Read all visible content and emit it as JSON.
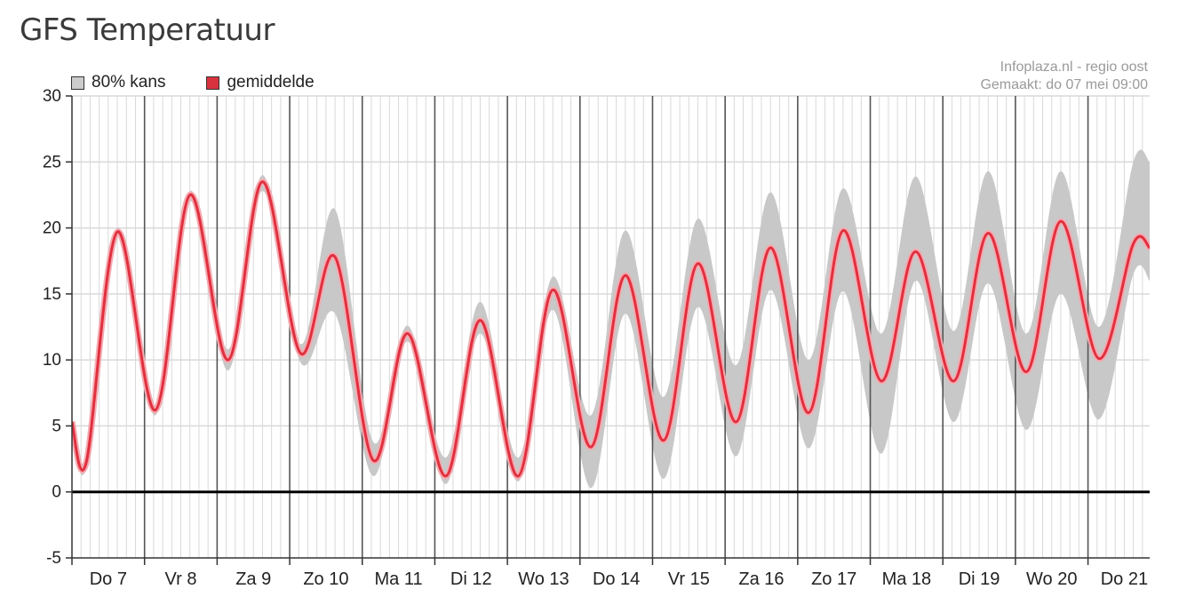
{
  "page": {
    "title": "GFS Temperatuur"
  },
  "legend": {
    "band_label": "80% kans",
    "mean_label": "gemiddelde"
  },
  "source": {
    "line1": "Infoplaza.nl - regio oost",
    "line2": "Gemaakt: do 07 mei 09:00"
  },
  "colors": {
    "mean_line": "#e0303f",
    "mean_halo": "#f4aab0",
    "band": "#c8c8c8",
    "band_swatch": "#cccccc",
    "mean_swatch": "#d8323f",
    "day_line": "#555555",
    "grid": "#d9d9d9",
    "zero_line": "#000000"
  },
  "chart_data": {
    "type": "area",
    "title": "GFS Temperatuur",
    "xlabel": "",
    "ylabel": "",
    "ylim": [
      -5,
      30
    ],
    "yticks": [
      -5,
      0,
      5,
      10,
      15,
      20,
      25,
      30
    ],
    "grid": true,
    "legend_position": "top-left",
    "x_unit": "days since Do 7 00:00",
    "xlim": [
      0,
      14.85
    ],
    "day_labels": [
      "Do 7",
      "Vr 8",
      "Za 9",
      "Zo 10",
      "Ma 11",
      "Di 12",
      "Wo 13",
      "Do 14",
      "Vr 15",
      "Za 16",
      "Zo 17",
      "Ma 18",
      "Di 19",
      "Wo 20",
      "Do 21"
    ],
    "series": [
      {
        "name": "gemiddelde",
        "points": [
          [
            0.0,
            5.3
          ],
          [
            0.2,
            2.3
          ],
          [
            0.625,
            19.7
          ],
          [
            1.15,
            6.2
          ],
          [
            1.625,
            22.5
          ],
          [
            2.15,
            10.0
          ],
          [
            2.625,
            23.5
          ],
          [
            3.15,
            10.5
          ],
          [
            3.625,
            17.8
          ],
          [
            4.15,
            2.4
          ],
          [
            4.625,
            12.0
          ],
          [
            5.15,
            1.2
          ],
          [
            5.625,
            13.0
          ],
          [
            6.15,
            1.2
          ],
          [
            6.625,
            15.3
          ],
          [
            7.15,
            3.4
          ],
          [
            7.625,
            16.4
          ],
          [
            8.15,
            3.9
          ],
          [
            8.625,
            17.3
          ],
          [
            9.15,
            5.3
          ],
          [
            9.625,
            18.5
          ],
          [
            10.15,
            6.0
          ],
          [
            10.625,
            19.8
          ],
          [
            11.15,
            8.4
          ],
          [
            11.625,
            18.2
          ],
          [
            12.15,
            8.4
          ],
          [
            12.625,
            19.6
          ],
          [
            13.15,
            9.1
          ],
          [
            13.625,
            20.5
          ],
          [
            14.15,
            10.1
          ],
          [
            14.625,
            18.8
          ],
          [
            14.85,
            18.5
          ]
        ]
      },
      {
        "name": "80% kans",
        "upper": [
          [
            0.0,
            5.6
          ],
          [
            0.2,
            2.8
          ],
          [
            0.625,
            20.0
          ],
          [
            1.15,
            6.6
          ],
          [
            1.625,
            22.8
          ],
          [
            2.15,
            10.8
          ],
          [
            2.625,
            24.0
          ],
          [
            3.15,
            11.2
          ],
          [
            3.625,
            21.4
          ],
          [
            4.15,
            3.8
          ],
          [
            4.625,
            12.6
          ],
          [
            5.15,
            2.6
          ],
          [
            5.625,
            14.4
          ],
          [
            6.15,
            2.6
          ],
          [
            6.625,
            16.3
          ],
          [
            7.15,
            5.8
          ],
          [
            7.625,
            19.8
          ],
          [
            8.15,
            7.2
          ],
          [
            8.625,
            20.7
          ],
          [
            9.15,
            9.6
          ],
          [
            9.625,
            22.7
          ],
          [
            10.15,
            10.0
          ],
          [
            10.625,
            23.0
          ],
          [
            11.15,
            12.0
          ],
          [
            11.625,
            23.9
          ],
          [
            12.15,
            12.2
          ],
          [
            12.625,
            24.3
          ],
          [
            13.15,
            12.0
          ],
          [
            13.625,
            24.3
          ],
          [
            14.15,
            12.5
          ],
          [
            14.625,
            25.0
          ],
          [
            14.85,
            25.0
          ]
        ],
        "lower": [
          [
            0.0,
            5.0
          ],
          [
            0.2,
            1.9
          ],
          [
            0.625,
            19.3
          ],
          [
            1.15,
            5.8
          ],
          [
            1.625,
            22.0
          ],
          [
            2.15,
            9.2
          ],
          [
            2.625,
            22.8
          ],
          [
            3.15,
            9.8
          ],
          [
            3.625,
            13.5
          ],
          [
            4.15,
            1.2
          ],
          [
            4.625,
            11.4
          ],
          [
            5.15,
            0.6
          ],
          [
            5.625,
            12.0
          ],
          [
            6.15,
            0.8
          ],
          [
            6.625,
            13.8
          ],
          [
            7.15,
            0.3
          ],
          [
            7.625,
            13.5
          ],
          [
            8.15,
            1.0
          ],
          [
            8.625,
            14.0
          ],
          [
            9.15,
            2.7
          ],
          [
            9.625,
            15.3
          ],
          [
            10.15,
            3.3
          ],
          [
            10.625,
            15.2
          ],
          [
            11.15,
            2.9
          ],
          [
            11.625,
            16.0
          ],
          [
            12.15,
            5.3
          ],
          [
            12.625,
            15.8
          ],
          [
            13.15,
            4.7
          ],
          [
            13.625,
            15.0
          ],
          [
            14.15,
            5.5
          ],
          [
            14.625,
            16.5
          ],
          [
            14.85,
            16.0
          ]
        ]
      }
    ]
  }
}
